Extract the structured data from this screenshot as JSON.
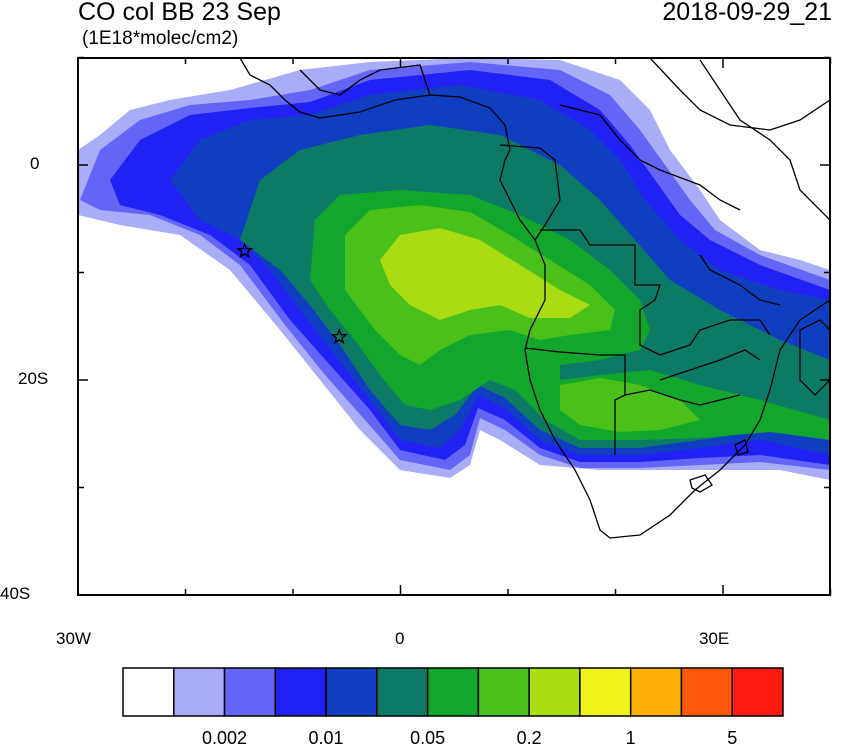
{
  "title": "CO col BB 23 Sep",
  "units": "(1E18*molec/cm2)",
  "datetime": "2018-09-29_21",
  "axes": {
    "lat_labels": [
      "0",
      "20S",
      "40S"
    ],
    "lon_labels": [
      "30W",
      "0",
      "30E"
    ]
  },
  "colorbar": {
    "colors": [
      "#ffffff",
      "#a9acf6",
      "#6464f6",
      "#2121f4",
      "#0f3fc0",
      "#0d7a66",
      "#13a62c",
      "#4bc01a",
      "#aadc14",
      "#f0f41c",
      "#ffb008",
      "#ff5a0a",
      "#ff1a12"
    ],
    "labels": [
      "0.002",
      "0.01",
      "0.05",
      "0.2",
      "1",
      "5"
    ]
  },
  "markers": [
    {
      "name": "star-1",
      "lon": -14.5,
      "lat": -8
    },
    {
      "name": "star-2",
      "lon": -5.7,
      "lat": -16
    }
  ]
}
